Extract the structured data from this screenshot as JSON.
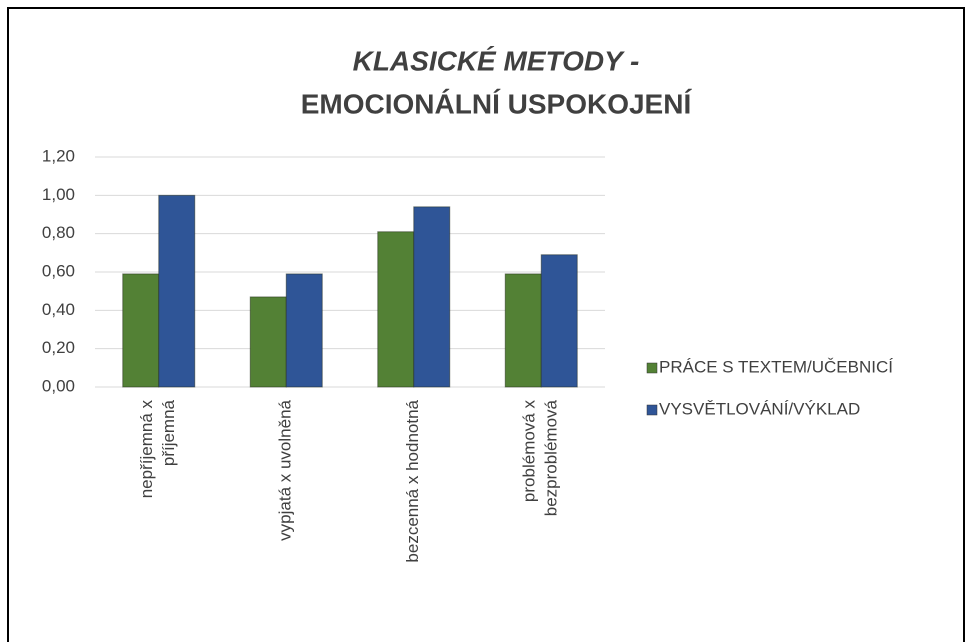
{
  "chart_data": {
    "type": "bar",
    "title": [
      "KLASICKÉ METODY -",
      "EMOCIONÁLNÍ USPOKOJENÍ"
    ],
    "categories": [
      [
        "nepříjemná x",
        "příjemná"
      ],
      [
        "vypjatá x uvolněná"
      ],
      [
        "bezcenná x hodnotná"
      ],
      [
        "problémová x",
        "bezproblémová"
      ]
    ],
    "series": [
      {
        "name": "PRÁCE S TEXTEM/UČEBNICÍ",
        "color": "#538135",
        "values": [
          0.59,
          0.47,
          0.81,
          0.59
        ]
      },
      {
        "name": "VYSVĚTLOVÁNÍ/VÝKLAD",
        "color": "#2f5597",
        "values": [
          1.0,
          0.59,
          0.94,
          0.69
        ]
      }
    ],
    "ylim": [
      0,
      1.2
    ],
    "yticks": [
      {
        "value": 0,
        "label": "0,00"
      },
      {
        "value": 0.2,
        "label": "0,20"
      },
      {
        "value": 0.4,
        "label": "0,40"
      },
      {
        "value": 0.6,
        "label": "0,60"
      },
      {
        "value": 0.8,
        "label": "0,80"
      },
      {
        "value": 1.0,
        "label": "1,00"
      },
      {
        "value": 1.2,
        "label": "1,20"
      }
    ],
    "grid": true,
    "legend": "right"
  }
}
